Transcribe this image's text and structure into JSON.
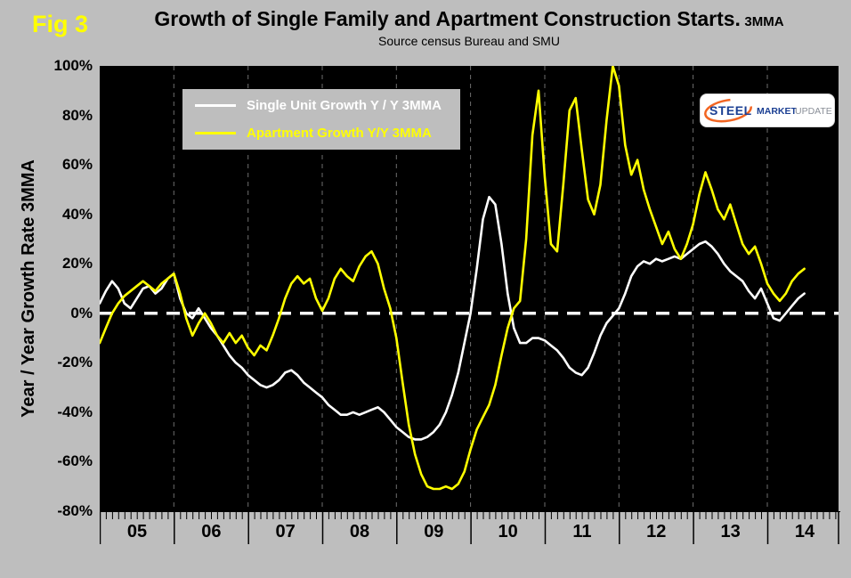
{
  "figure_label": "Fig 3",
  "title": "Growth of Single Family and Apartment Construction Starts.",
  "title_suffix": "3MMA",
  "subtitle": "Source census Bureau and SMU",
  "y_axis_title": "Year / Year Growth Rate 3MMA",
  "logo": {
    "steel": "STEEL",
    "market": "MARKET",
    "update": "UPDATE"
  },
  "colors": {
    "page_background": "#bebebe",
    "plot_background": "#000000",
    "single_family_line": "#ffffff",
    "apartment_line": "#ffff00",
    "zero_line": "#ffffff",
    "gridline": "#6e6e6e",
    "fig_label": "#ffff00",
    "logo_blue": "#1b3f93",
    "logo_orange": "#f26522",
    "logo_gray": "#8a8f98"
  },
  "chart_data": {
    "type": "line",
    "title": "Growth of Single Family and Apartment Construction Starts. 3MMA",
    "subtitle": "Source census Bureau and SMU",
    "ylabel": "Year / Year Growth Rate 3MMA",
    "ylim": [
      -80,
      100
    ],
    "y_ticks": [
      100,
      80,
      60,
      40,
      20,
      0,
      -20,
      -40,
      -60,
      -80
    ],
    "y_tick_labels": [
      "100%",
      "80%",
      "60%",
      "40%",
      "20%",
      "0%",
      "-20%",
      "-40%",
      "-60%",
      "-80%"
    ],
    "x_tick_labels": [
      "05",
      "06",
      "07",
      "08",
      "09",
      "10",
      "11",
      "12",
      "13",
      "14"
    ],
    "x_start_year": 2005,
    "x_interval": "monthly",
    "grid": "vertical-dashed-yearly",
    "zero_line": "white-dashed",
    "legend_position": "top-left-inside",
    "series": [
      {
        "name": "Single Unit Growth Y / Y 3MMA",
        "color": "#ffffff",
        "values": [
          4,
          9,
          13,
          10,
          4,
          2,
          6,
          10,
          11,
          8,
          10,
          14,
          16,
          6,
          0,
          -2,
          2,
          -2,
          -6,
          -9,
          -13,
          -17,
          -20,
          -22,
          -25,
          -27,
          -29,
          -30,
          -29,
          -27,
          -24,
          -23,
          -25,
          -28,
          -30,
          -32,
          -34,
          -37,
          -39,
          -41,
          -41,
          -40,
          -41,
          -40,
          -39,
          -38,
          -40,
          -43,
          -46,
          -48,
          -50,
          -51,
          -51,
          -50,
          -48,
          -45,
          -40,
          -33,
          -24,
          -12,
          0,
          18,
          38,
          47,
          44,
          28,
          8,
          -6,
          -12,
          -12,
          -10,
          -10,
          -11,
          -13,
          -15,
          -18,
          -22,
          -24,
          -25,
          -22,
          -16,
          -9,
          -4,
          -1,
          2,
          8,
          15,
          19,
          21,
          20,
          22,
          21,
          22,
          23,
          22,
          24,
          26,
          28,
          29,
          27,
          24,
          20,
          17,
          15,
          13,
          9,
          6,
          10,
          4,
          -2,
          -3,
          0,
          3,
          6,
          8
        ]
      },
      {
        "name": "Apartment Growth Y/Y 3MMA",
        "color": "#ffff00",
        "values": [
          -12,
          -6,
          0,
          4,
          7,
          9,
          11,
          13,
          11,
          9,
          12,
          14,
          16,
          8,
          -2,
          -9,
          -4,
          0,
          -4,
          -9,
          -12,
          -8,
          -12,
          -9,
          -14,
          -17,
          -13,
          -15,
          -9,
          -2,
          6,
          12,
          15,
          12,
          14,
          6,
          1,
          6,
          14,
          18,
          15,
          13,
          19,
          23,
          25,
          20,
          10,
          2,
          -10,
          -28,
          -45,
          -57,
          -65,
          -70,
          -71,
          -71,
          -70,
          -71,
          -69,
          -64,
          -55,
          -47,
          -42,
          -37,
          -29,
          -17,
          -6,
          2,
          5,
          30,
          72,
          90,
          55,
          28,
          25,
          52,
          82,
          87,
          66,
          46,
          40,
          52,
          78,
          100,
          92,
          68,
          56,
          62,
          50,
          42,
          35,
          28,
          33,
          26,
          22,
          28,
          36,
          48,
          57,
          50,
          42,
          38,
          44,
          36,
          28,
          24,
          27,
          20,
          12,
          8,
          5,
          8,
          13,
          16,
          18
        ]
      }
    ]
  }
}
